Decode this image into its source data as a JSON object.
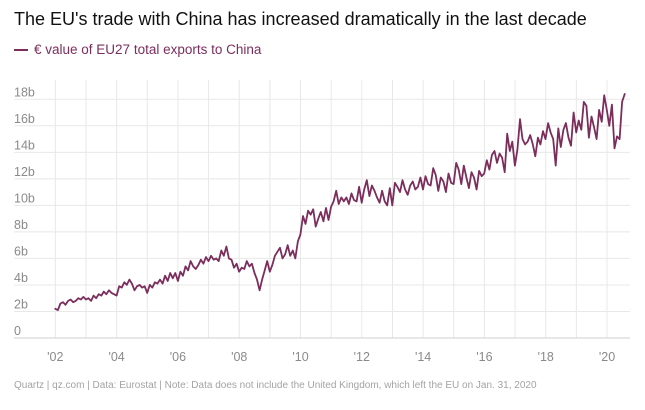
{
  "chart_data": {
    "type": "line",
    "title": "The EU's trade with China has increased dramatically in the last decade",
    "legend": "€ value of EU27 total exports to China",
    "footer": "Quartz | qz.com | Data: Eurostat | Note: Data does not include the United Kingdom, which left the EU on Jan. 31, 2020",
    "xlabel": "",
    "ylabel": "",
    "x_range": [
      2001.5,
      2020.75
    ],
    "ylim": [
      0,
      19
    ],
    "y_ticks": [
      0,
      2,
      4,
      6,
      8,
      10,
      12,
      14,
      16,
      18
    ],
    "y_tick_labels": [
      "0",
      "2b",
      "4b",
      "6b",
      "8b",
      "10b",
      "12b",
      "14b",
      "16b",
      "18b"
    ],
    "x_ticks": [
      2002,
      2004,
      2006,
      2008,
      2010,
      2012,
      2014,
      2016,
      2018,
      2020
    ],
    "x_tick_labels": [
      "'02",
      "'04",
      "'06",
      "'08",
      "'10",
      "'12",
      "'14",
      "'16",
      "'18",
      "'20"
    ],
    "grid": true,
    "legend_position": "top-left",
    "series": [
      {
        "name": "€ value of EU27 total exports to China",
        "x_start": 2002,
        "x_step": 0.0833,
        "values": [
          2.2,
          2.1,
          2.6,
          2.7,
          2.5,
          2.8,
          2.9,
          2.7,
          2.8,
          3.0,
          2.9,
          3.1,
          2.9,
          3.0,
          2.8,
          3.2,
          3.0,
          3.3,
          3.2,
          3.5,
          3.3,
          3.6,
          3.4,
          3.3,
          3.2,
          3.9,
          3.8,
          4.2,
          4.0,
          4.4,
          4.1,
          3.6,
          3.9,
          4.0,
          3.8,
          3.9,
          3.4,
          4.0,
          3.8,
          4.2,
          4.1,
          4.4,
          4.1,
          4.7,
          4.3,
          4.9,
          4.5,
          4.9,
          4.3,
          5.0,
          4.7,
          5.4,
          5.1,
          5.8,
          5.4,
          5.2,
          5.5,
          5.9,
          5.6,
          6.1,
          5.8,
          6.2,
          5.9,
          6.0,
          5.8,
          6.6,
          6.2,
          6.9,
          6.0,
          5.9,
          5.3,
          5.6,
          5.0,
          5.3,
          5.2,
          5.8,
          5.4,
          5.6,
          4.9,
          4.4,
          3.6,
          4.4,
          5.1,
          5.8,
          5.0,
          5.5,
          6.2,
          6.5,
          6.8,
          6.0,
          6.3,
          7.0,
          6.2,
          6.6,
          6.0,
          7.3,
          7.8,
          9.2,
          8.6,
          9.6,
          9.3,
          9.7,
          8.4,
          9.0,
          9.5,
          8.8,
          9.8,
          8.9,
          9.9,
          10.3,
          11.1,
          10.1,
          10.6,
          10.3,
          10.6,
          10.1,
          10.9,
          10.4,
          10.3,
          11.4,
          10.2,
          11.2,
          11.9,
          10.7,
          11.5,
          11.1,
          10.6,
          10.2,
          11.1,
          10.3,
          10.0,
          11.3,
          10.0,
          11.7,
          11.4,
          11.0,
          11.9,
          11.2,
          10.8,
          11.5,
          11.8,
          11.2,
          11.4,
          12.1,
          11.2,
          12.2,
          11.6,
          11.5,
          12.8,
          12.3,
          11.1,
          12.1,
          11.8,
          11.0,
          12.4,
          11.7,
          11.6,
          13.2,
          12.7,
          11.6,
          13.0,
          12.1,
          11.3,
          12.5,
          12.1,
          11.2,
          12.6,
          12.2,
          12.4,
          13.4,
          12.7,
          13.8,
          14.1,
          13.2,
          13.9,
          13.6,
          12.5,
          15.4,
          14.1,
          14.8,
          13.0,
          14.2,
          16.5,
          15.0,
          14.6,
          14.8,
          15.3,
          14.6,
          13.7,
          15.1,
          14.6,
          15.6,
          15.0,
          16.2,
          15.5,
          15.0,
          13.0,
          15.8,
          14.4,
          15.7,
          16.2,
          15.1,
          14.5,
          17.0,
          15.5,
          16.4,
          15.7,
          17.8,
          17.5,
          15.1,
          16.7,
          15.9,
          15.0,
          17.2,
          16.3,
          18.3,
          17.2,
          16.0,
          17.6,
          14.3,
          15.2,
          15.0,
          17.8,
          18.4
        ]
      }
    ],
    "colors": {
      "line": "#7b2d5c",
      "grid": "#e8e8e8",
      "tick_text": "#8a8a8a",
      "title": "#111111",
      "footer": "#a3a3a3"
    }
  }
}
